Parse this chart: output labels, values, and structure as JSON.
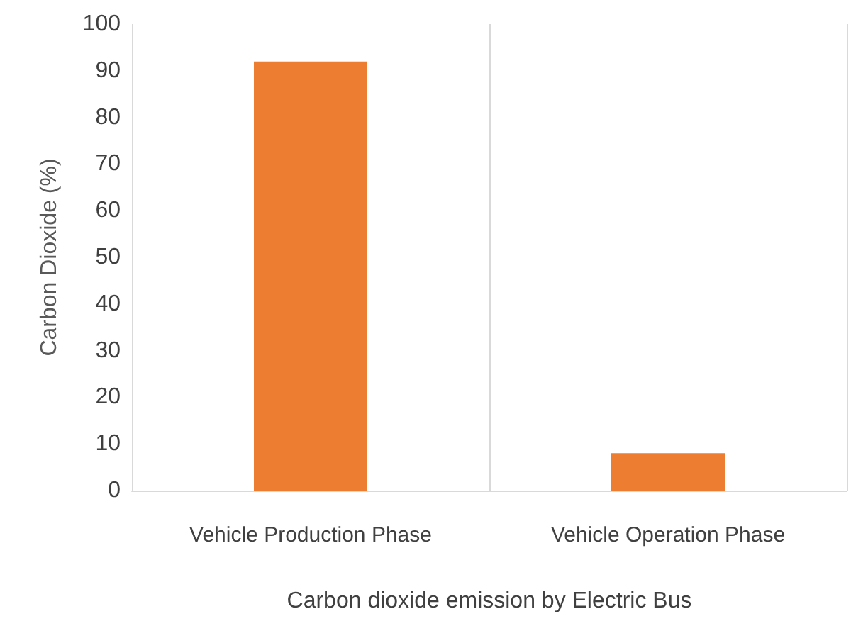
{
  "chart_data": {
    "type": "bar",
    "xlabel": "Carbon dioxide emission by Electric Bus",
    "ylabel": "Carbon Dioxide (%)",
    "categories": [
      "Vehicle Production Phase",
      "Vehicle Operation Phase"
    ],
    "values": [
      92,
      8
    ],
    "color": "#ed7d31",
    "ylim": [
      0,
      100
    ],
    "yticks": [
      0,
      10,
      20,
      30,
      40,
      50,
      60,
      70,
      80,
      90,
      100
    ],
    "grid": "x"
  }
}
